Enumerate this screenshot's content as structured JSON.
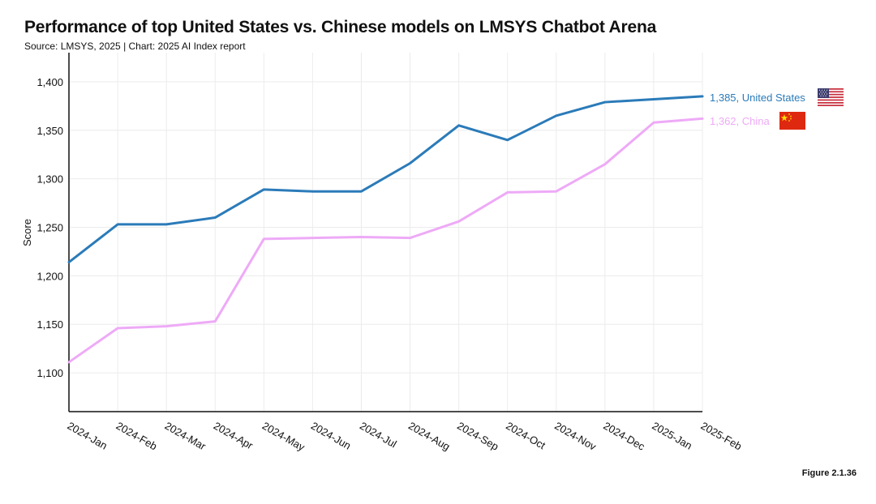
{
  "title": "Performance of top United States vs. Chinese models on LMSYS Chatbot Arena",
  "subtitle": "Source: LMSYS, 2025 | Chart: 2025 AI Index report",
  "figure_label": "Figure 2.1.36",
  "chart_data": {
    "type": "line",
    "title": "Performance of top United States vs. Chinese models on LMSYS Chatbot Arena",
    "xlabel": "",
    "ylabel": "Score",
    "ylim": [
      1060,
      1430
    ],
    "yticks": [
      1100,
      1150,
      1200,
      1250,
      1300,
      1350,
      1400
    ],
    "ytick_labels": [
      "1,100",
      "1,150",
      "1,200",
      "1,250",
      "1,300",
      "1,350",
      "1,400"
    ],
    "grid": true,
    "categories": [
      "2024-Jan",
      "2024-Feb",
      "2024-Mar",
      "2024-Apr",
      "2024-May",
      "2024-Jun",
      "2024-Jul",
      "2024-Aug",
      "2024-Sep",
      "2024-Oct",
      "2024-Nov",
      "2024-Dec",
      "2025-Jan",
      "2025-Feb"
    ],
    "series": [
      {
        "name": "United States",
        "color": "#2b7bb9",
        "end_label": "1,385, United States",
        "flag_icon": "us-flag-icon",
        "values": [
          1214,
          1253,
          1253,
          1260,
          1289,
          1287,
          1287,
          1316,
          1355,
          1340,
          1365,
          1379,
          1382,
          1385
        ]
      },
      {
        "name": "China",
        "color": "#eeaaf7",
        "end_label": "1,362, China",
        "flag_icon": "china-flag-icon",
        "values": [
          1111,
          1146,
          1148,
          1153,
          1238,
          1239,
          1240,
          1239,
          1256,
          1286,
          1287,
          1315,
          1358,
          1362
        ]
      }
    ]
  }
}
